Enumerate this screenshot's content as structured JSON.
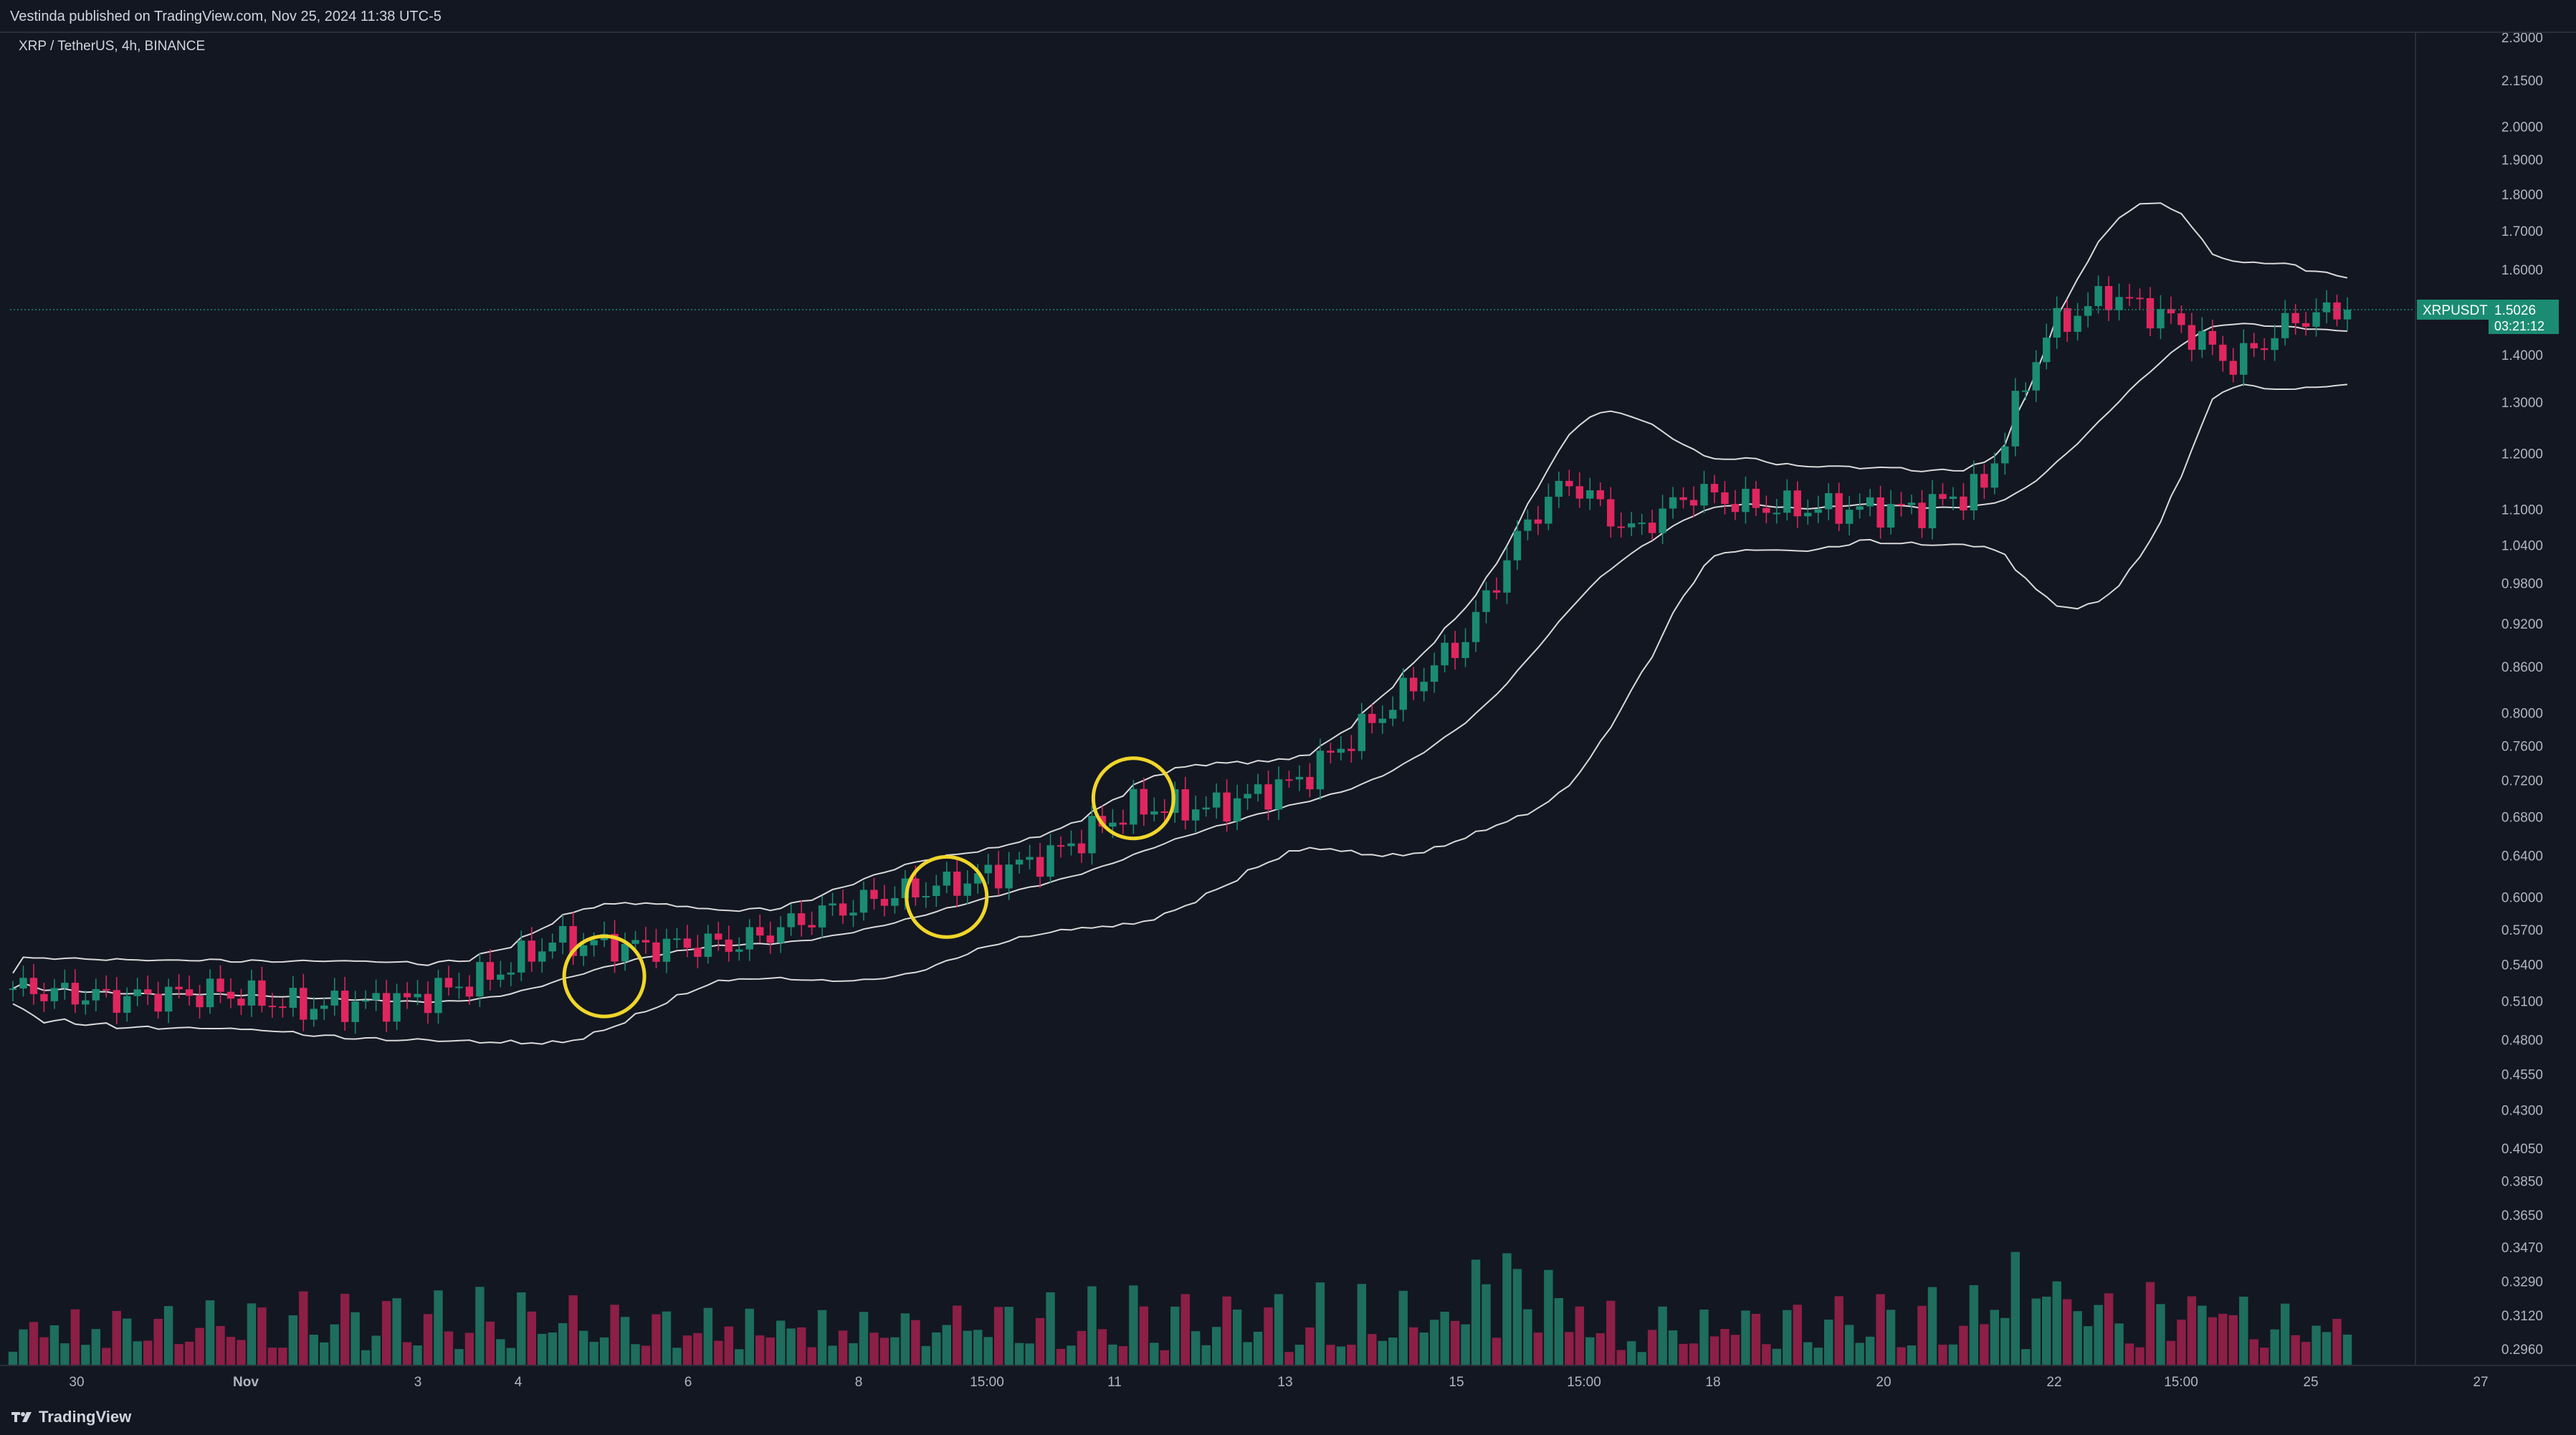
{
  "header": {
    "publisher": "Vestinda published on TradingView.com, Nov 25, 2024 11:38 UTC-5"
  },
  "symbol_legend": "XRP / TetherUS, 4h, BINANCE",
  "footer": {
    "brand": "TradingView"
  },
  "price_tag": {
    "symbol": "XRPUSDT",
    "price": "1.5026",
    "countdown": "03:21:12"
  },
  "colors": {
    "up": "#26a69a",
    "down": "#f23645",
    "up_body": "#1b8c73",
    "down_body": "#e0265e",
    "vol_up": "#1e6d5d",
    "vol_down": "#8c1f45",
    "band": "#d9d9d9",
    "highlight": "#f0d62a",
    "bg": "#131722"
  },
  "chart_data": {
    "type": "candlestick",
    "symbol": "XRP / TetherUS",
    "interval": "4h",
    "exchange": "BINANCE",
    "y_scale": "log",
    "y_ticks": [
      "2.3000",
      "2.1500",
      "2.0000",
      "1.9000",
      "1.8000",
      "1.7000",
      "1.6000",
      "1.4000",
      "1.3000",
      "1.2000",
      "1.1000",
      "1.0400",
      "0.9800",
      "0.9200",
      "0.8600",
      "0.8000",
      "0.7600",
      "0.7200",
      "0.6800",
      "0.6400",
      "0.6000",
      "0.5700",
      "0.5400",
      "0.5100",
      "0.4800",
      "0.4550",
      "0.4300",
      "0.4050",
      "0.3850",
      "0.3650",
      "0.3470",
      "0.3290",
      "0.3120",
      "0.2960"
    ],
    "x_labels": [
      "30",
      "Nov",
      "3",
      "4",
      "6",
      "8",
      "15:00",
      "11",
      "13",
      "15",
      "15:00",
      "18",
      "20",
      "22",
      "15:00",
      "25",
      "27"
    ],
    "last_price": 1.5026,
    "highlighted_candles": [
      {
        "date": "Nov 5",
        "price": 0.53
      },
      {
        "date": "Nov 10",
        "price": 0.6
      },
      {
        "date": "Nov 12",
        "price": 0.7
      }
    ],
    "indicators": [
      "Bollinger Bands",
      "Volume"
    ],
    "ohlc_path": [
      {
        "i": 0,
        "c": 0.52
      },
      {
        "i": 10,
        "c": 0.512
      },
      {
        "i": 20,
        "c": 0.517
      },
      {
        "i": 28,
        "c": 0.505
      },
      {
        "i": 38,
        "c": 0.51
      },
      {
        "i": 46,
        "c": 0.53
      },
      {
        "i": 52,
        "c": 0.56
      },
      {
        "i": 60,
        "c": 0.555
      },
      {
        "i": 70,
        "c": 0.558
      },
      {
        "i": 78,
        "c": 0.585
      },
      {
        "i": 84,
        "c": 0.6
      },
      {
        "i": 92,
        "c": 0.615
      },
      {
        "i": 100,
        "c": 0.64
      },
      {
        "i": 108,
        "c": 0.69
      },
      {
        "i": 116,
        "c": 0.69
      },
      {
        "i": 124,
        "c": 0.72
      },
      {
        "i": 132,
        "c": 0.8
      },
      {
        "i": 140,
        "c": 0.9
      },
      {
        "i": 146,
        "c": 1.08
      },
      {
        "i": 150,
        "c": 1.15
      },
      {
        "i": 156,
        "c": 1.06
      },
      {
        "i": 162,
        "c": 1.13
      },
      {
        "i": 168,
        "c": 1.105
      },
      {
        "i": 176,
        "c": 1.1
      },
      {
        "i": 184,
        "c": 1.1
      },
      {
        "i": 190,
        "c": 1.14
      },
      {
        "i": 196,
        "c": 1.45
      },
      {
        "i": 202,
        "c": 1.54
      },
      {
        "i": 208,
        "c": 1.48
      },
      {
        "i": 214,
        "c": 1.38
      },
      {
        "i": 220,
        "c": 1.48
      },
      {
        "i": 225,
        "c": 1.503
      }
    ]
  }
}
